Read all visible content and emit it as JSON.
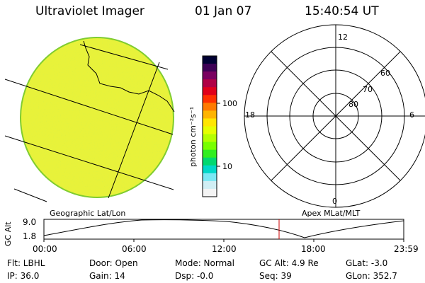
{
  "header": {
    "instrument": "Ultraviolet Imager",
    "date": "01 Jan 07",
    "time": "15:40:54 UT"
  },
  "colorbar": {
    "unit_label": "photon cm⁻²s⁻¹",
    "ticks": [
      "100",
      "10"
    ],
    "colors": [
      "#000033",
      "#3d0055",
      "#7a0060",
      "#b00045",
      "#e0001a",
      "#ff3000",
      "#ff7a00",
      "#ffb400",
      "#ffe600",
      "#e6ff00",
      "#b4ff00",
      "#78ff00",
      "#30ee20",
      "#00d870",
      "#00d8c8",
      "#7ae8f4",
      "#d0eef4",
      "#f4f4f4"
    ]
  },
  "polar_plot": {
    "labels": {
      "top": "12",
      "left": "18",
      "right": "6",
      "bottom": "0"
    },
    "rings": [
      "60",
      "70",
      "80"
    ]
  },
  "geo_label": "Geographic Lat/Lon",
  "apex_label": "Apex MLat/MLT",
  "altitude_plot": {
    "axis_label": "GC Alt",
    "y_ticks": [
      "9.0",
      "1.8"
    ],
    "x_ticks": [
      "00:00",
      "06:00",
      "12:00",
      "18:00",
      "23:59"
    ],
    "current_time_marker_color": "#cc0000"
  },
  "status": {
    "flt": "Flt: LBHL",
    "door": "Door: Open",
    "mode": "Mode: Normal",
    "gc_alt": "GC Alt: 4.9 Re",
    "glat": "GLat:  -3.0",
    "ip": "IP: 36.0",
    "gain": "Gain: 14",
    "dsp": "Dsp:   -0.0",
    "seq": "Seq: 39",
    "glon": "GLon: 352.7"
  }
}
